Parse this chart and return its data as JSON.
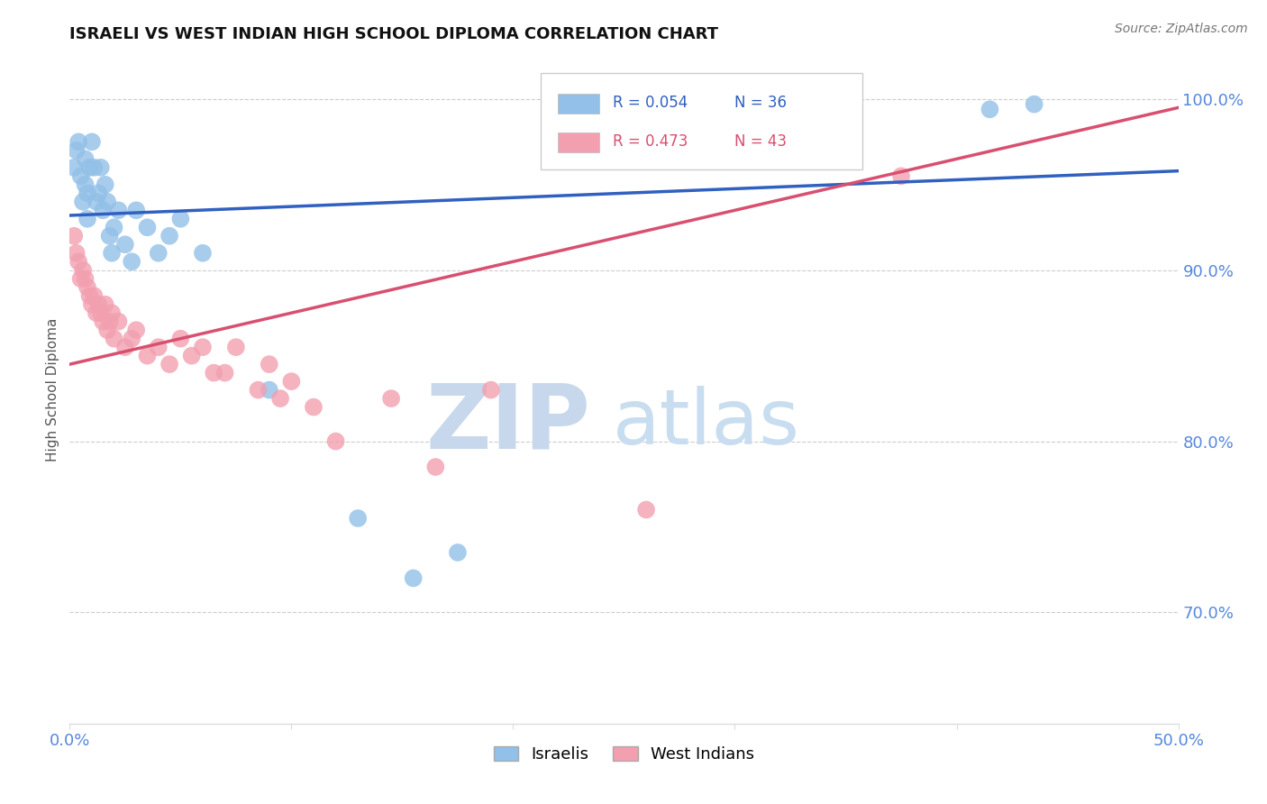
{
  "title": "ISRAELI VS WEST INDIAN HIGH SCHOOL DIPLOMA CORRELATION CHART",
  "source": "Source: ZipAtlas.com",
  "ylabel": "High School Diploma",
  "legend_r_blue": "R = 0.054",
  "legend_n_blue": "N = 36",
  "legend_r_pink": "R = 0.473",
  "legend_n_pink": "N = 43",
  "legend_label_blue": "Israelis",
  "legend_label_pink": "West Indians",
  "blue_color": "#92C0E8",
  "pink_color": "#F2A0B0",
  "blue_line_color": "#3060C0",
  "pink_line_color": "#D85070",
  "title_color": "#111111",
  "axis_label_color": "#555555",
  "tick_color": "#5588DD",
  "grid_color": "#cccccc",
  "watermark_color": "#dde8f5",
  "xmin": 0.0,
  "xmax": 0.5,
  "ymin": 0.635,
  "ymax": 1.025,
  "yticks": [
    1.0,
    0.9,
    0.8,
    0.7
  ],
  "ytick_labels": [
    "100.0%",
    "90.0%",
    "80.0%",
    "70.0%"
  ],
  "blue_dots_x": [
    0.002,
    0.003,
    0.004,
    0.005,
    0.006,
    0.007,
    0.007,
    0.008,
    0.008,
    0.009,
    0.01,
    0.011,
    0.012,
    0.013,
    0.014,
    0.015,
    0.016,
    0.017,
    0.018,
    0.019,
    0.02,
    0.022,
    0.025,
    0.028,
    0.03,
    0.035,
    0.04,
    0.045,
    0.05,
    0.06,
    0.09,
    0.13,
    0.155,
    0.175,
    0.415,
    0.435
  ],
  "blue_dots_y": [
    0.96,
    0.97,
    0.975,
    0.955,
    0.94,
    0.965,
    0.95,
    0.945,
    0.93,
    0.96,
    0.975,
    0.96,
    0.94,
    0.945,
    0.96,
    0.935,
    0.95,
    0.94,
    0.92,
    0.91,
    0.925,
    0.935,
    0.915,
    0.905,
    0.935,
    0.925,
    0.91,
    0.92,
    0.93,
    0.91,
    0.83,
    0.755,
    0.72,
    0.735,
    0.994,
    0.997
  ],
  "pink_dots_x": [
    0.002,
    0.003,
    0.004,
    0.005,
    0.006,
    0.007,
    0.008,
    0.009,
    0.01,
    0.011,
    0.012,
    0.013,
    0.014,
    0.015,
    0.016,
    0.017,
    0.018,
    0.019,
    0.02,
    0.022,
    0.025,
    0.028,
    0.03,
    0.035,
    0.04,
    0.045,
    0.05,
    0.055,
    0.06,
    0.065,
    0.07,
    0.075,
    0.085,
    0.09,
    0.095,
    0.1,
    0.11,
    0.12,
    0.145,
    0.165,
    0.19,
    0.26,
    0.375
  ],
  "pink_dots_y": [
    0.92,
    0.91,
    0.905,
    0.895,
    0.9,
    0.895,
    0.89,
    0.885,
    0.88,
    0.885,
    0.875,
    0.88,
    0.875,
    0.87,
    0.88,
    0.865,
    0.87,
    0.875,
    0.86,
    0.87,
    0.855,
    0.86,
    0.865,
    0.85,
    0.855,
    0.845,
    0.86,
    0.85,
    0.855,
    0.84,
    0.84,
    0.855,
    0.83,
    0.845,
    0.825,
    0.835,
    0.82,
    0.8,
    0.825,
    0.785,
    0.83,
    0.76,
    0.955
  ],
  "blue_line_x": [
    0.0,
    0.5
  ],
  "blue_line_y": [
    0.932,
    0.958
  ],
  "pink_line_x": [
    0.0,
    0.5
  ],
  "pink_line_y": [
    0.845,
    0.995
  ]
}
